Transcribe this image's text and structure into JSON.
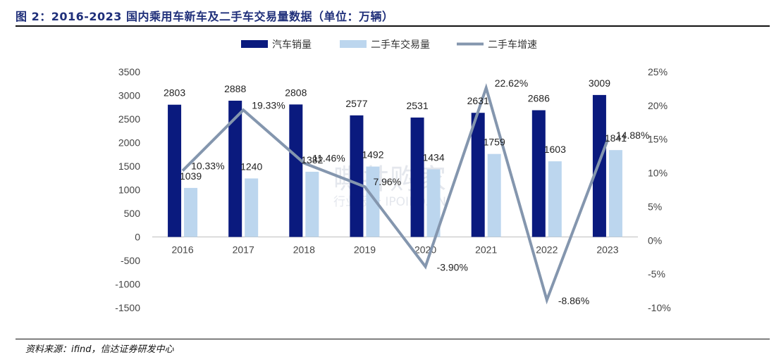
{
  "title": "图 2：2016-2023 国内乘用车新车及二手车交易量数据（单位：万辆）",
  "source": "资料来源：ifind，信达证券研发中心",
  "watermark": {
    "line1": "嘶井购家",
    "line2": "行业报告 IPOIPO.CN"
  },
  "chart_data": {
    "type": "bar+line",
    "categories": [
      "2016",
      "2017",
      "2018",
      "2019",
      "2020",
      "2021",
      "2022",
      "2023"
    ],
    "series": [
      {
        "name": "汽车销量",
        "type": "bar",
        "axis": "left",
        "color": "#0a1a7e",
        "values": [
          2803,
          2888,
          2808,
          2577,
          2531,
          2631,
          2686,
          3009
        ],
        "labels": [
          "2803",
          "2888",
          "2808",
          "2577",
          "2531",
          "2631",
          "2686",
          "3009"
        ]
      },
      {
        "name": "二手车交易量",
        "type": "bar",
        "axis": "left",
        "color": "#bcd6ee",
        "values": [
          1039,
          1240,
          1382,
          1492,
          1434,
          1759,
          1603,
          1841
        ],
        "labels": [
          "1039",
          "1240",
          "1382",
          "1492",
          "1434",
          "1759",
          "1603",
          "1841"
        ]
      },
      {
        "name": "二手车增速",
        "type": "line",
        "axis": "right",
        "color": "#8496ae",
        "values": [
          10.33,
          19.33,
          11.46,
          7.96,
          -3.9,
          22.62,
          -8.86,
          14.88
        ],
        "labels": [
          "10.33%",
          "19.33%",
          "11.46%",
          "7.96%",
          "-3.90%",
          "22.62%",
          "-8.86%",
          "14.88%"
        ]
      }
    ],
    "y_left": {
      "min": -1500,
      "max": 3500,
      "step": 500,
      "ticks": [
        "3500",
        "3000",
        "2500",
        "2000",
        "1500",
        "1000",
        "500",
        "0",
        "-500",
        "-1000",
        "-1500"
      ]
    },
    "y_right": {
      "min": -10,
      "max": 25,
      "step": 5,
      "ticks": [
        "25%",
        "20%",
        "15%",
        "10%",
        "5%",
        "0%",
        "-5%",
        "-10%"
      ]
    },
    "legend_position": "top",
    "grid": false
  }
}
